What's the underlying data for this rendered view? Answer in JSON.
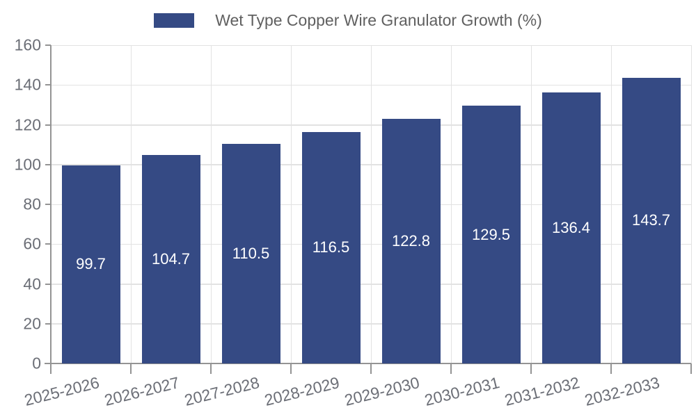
{
  "chart_data": {
    "type": "bar",
    "title": "",
    "legend_label": "Wet Type Copper Wire Granulator Growth (%)",
    "categories": [
      "2025-2026",
      "2026-2027",
      "2027-2028",
      "2028-2029",
      "2029-2030",
      "2030-2031",
      "2031-2032",
      "2032-2033"
    ],
    "values": [
      99.7,
      104.7,
      110.5,
      116.5,
      122.8,
      129.5,
      136.4,
      143.7
    ],
    "value_labels": [
      "99.7",
      "104.7",
      "110.5",
      "116.5",
      "122.8",
      "129.5",
      "136.4",
      "143.7"
    ],
    "xlabel": "",
    "ylabel": "",
    "ylim": [
      0,
      160
    ],
    "ytick_step": 20,
    "ytick_labels": [
      "0",
      "20",
      "40",
      "60",
      "80",
      "100",
      "120",
      "140",
      "160"
    ],
    "grid": true,
    "legend_position": "top-center",
    "colors": {
      "bar": "#354a84",
      "bar_value_text": "#ffffff",
      "grid_line": "#e2e2e2",
      "axis_line": "#949494",
      "tick_text": "#6b6e76",
      "legend_text": "#606060",
      "background": "#ffffff"
    }
  }
}
